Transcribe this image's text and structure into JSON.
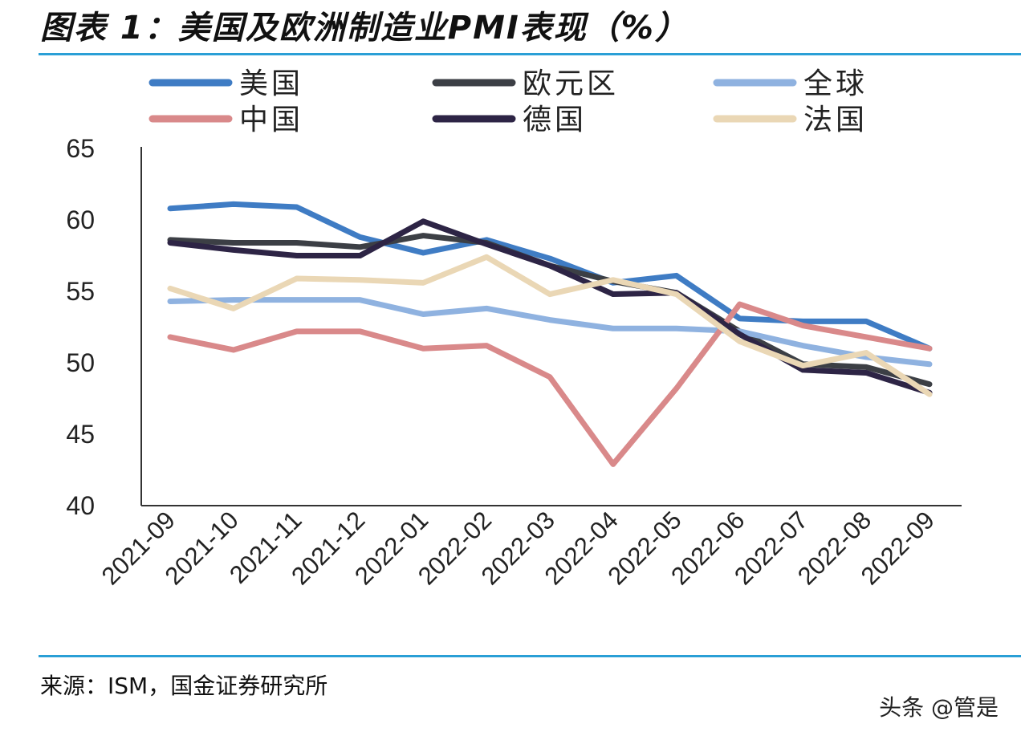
{
  "title": "图表 1：美国及欧洲制造业PMI表现（%）",
  "source": "来源：ISM，国金证券研究所",
  "watermark": "头条 @管是",
  "chart_data": {
    "type": "line",
    "title": "",
    "xlabel": "",
    "ylabel": "",
    "ylim": [
      40,
      65
    ],
    "yticks": [
      "40",
      "45",
      "50",
      "55",
      "60",
      "65"
    ],
    "grid": false,
    "legend": "top",
    "categories": [
      "2021-09",
      "2021-10",
      "2021-11",
      "2021-12",
      "2022-01",
      "2022-02",
      "2022-03",
      "2022-04",
      "2022-05",
      "2022-06",
      "2022-07",
      "2022-08",
      "2022-09"
    ],
    "series": [
      {
        "name": "美国",
        "color": "#3f7cc4",
        "values": [
          60.8,
          61.1,
          60.9,
          58.8,
          57.7,
          58.6,
          57.3,
          55.6,
          56.1,
          53.1,
          52.9,
          52.9,
          51.0
        ]
      },
      {
        "name": "欧元区",
        "color": "#3c3f45",
        "values": [
          58.6,
          58.4,
          58.4,
          58.1,
          58.9,
          58.4,
          56.8,
          55.7,
          54.9,
          52.2,
          49.9,
          49.7,
          48.5
        ]
      },
      {
        "name": "全球",
        "color": "#8fb2e0",
        "values": [
          54.3,
          54.4,
          54.4,
          54.4,
          53.4,
          53.8,
          53.0,
          52.4,
          52.4,
          52.2,
          51.2,
          50.4,
          49.9
        ]
      },
      {
        "name": "中国",
        "color": "#d9898a",
        "values": [
          51.8,
          50.9,
          52.2,
          52.2,
          51.0,
          51.2,
          49.0,
          42.9,
          48.2,
          54.1,
          52.6,
          51.8,
          51.0
        ]
      },
      {
        "name": "德国",
        "color": "#2d2445",
        "values": [
          58.4,
          57.9,
          57.5,
          57.5,
          59.9,
          58.3,
          56.8,
          54.8,
          54.9,
          52.0,
          49.5,
          49.3,
          47.9
        ]
      },
      {
        "name": "法国",
        "color": "#ead7b5",
        "values": [
          55.2,
          53.8,
          55.9,
          55.8,
          55.6,
          57.4,
          54.8,
          55.8,
          54.8,
          51.5,
          49.8,
          50.7,
          47.8
        ]
      }
    ]
  }
}
